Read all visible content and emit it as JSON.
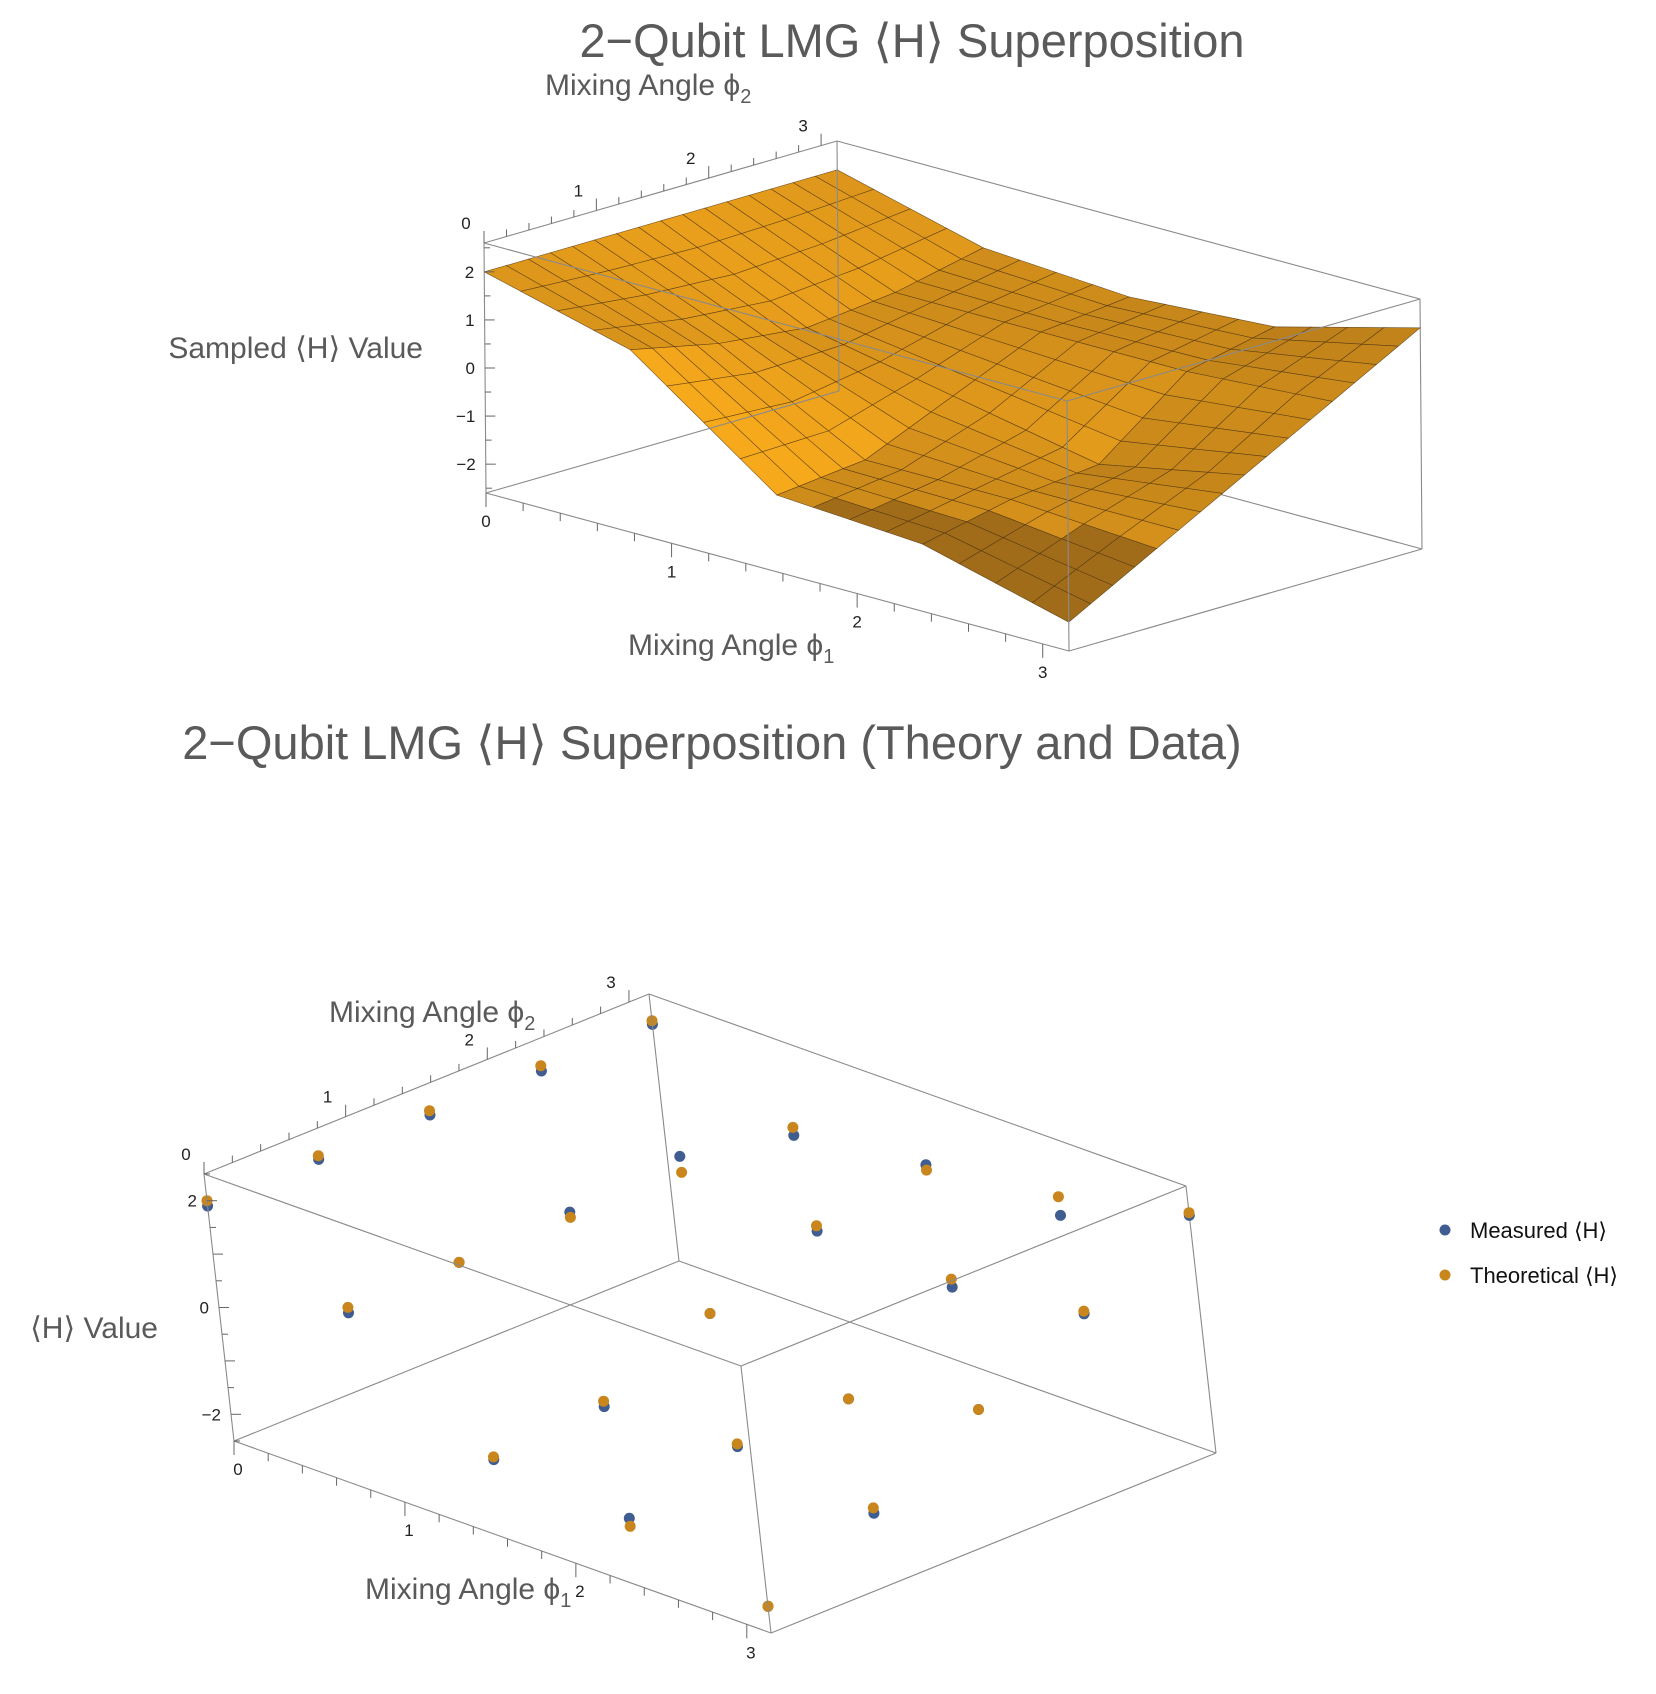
{
  "colors": {
    "surface_light": "#F7A91C",
    "surface_dark": "#5A3A16",
    "mesh": "#4a3010",
    "measured": "#3F5D91",
    "theoretical": "#C8861D",
    "text": "#5a5a5a"
  },
  "charts": [
    {
      "title": "2−Qubit LMG ⟨H⟩ Superposition",
      "xlabel": "Mixing Angle ϕ",
      "xlabel_sub": "1",
      "ylabel": "Mixing Angle ϕ",
      "ylabel_sub": "2",
      "zlabel": "Sampled ⟨H⟩ Value",
      "x_ticks": [
        "0",
        "1",
        "2",
        "3"
      ],
      "y_ticks": [
        "0",
        "1",
        "2",
        "3"
      ],
      "z_ticks": [
        "2",
        "1",
        "0",
        "−1",
        "−2"
      ]
    },
    {
      "title": "2−Qubit LMG ⟨H⟩ Superposition (Theory and Data)",
      "xlabel": "Mixing Angle ϕ",
      "xlabel_sub": "1",
      "ylabel": "Mixing Angle ϕ",
      "ylabel_sub": "2",
      "zlabel": "⟨H⟩ Value",
      "x_ticks": [
        "0",
        "1",
        "2",
        "3"
      ],
      "y_ticks": [
        "0",
        "1",
        "2",
        "3"
      ],
      "z_ticks": [
        "2",
        "0",
        "−2"
      ],
      "legend": [
        "Measured ⟨H⟩",
        "Theoretical ⟨H⟩"
      ]
    }
  ],
  "chart_data": [
    {
      "type": "surface3d",
      "title": "2−Qubit LMG ⟨H⟩ Superposition",
      "xlabel": "Mixing Angle ϕ1",
      "ylabel": "Mixing Angle ϕ2",
      "zlabel": "Sampled ⟨H⟩ Value",
      "xlim": [
        0,
        3.14159
      ],
      "ylim": [
        0,
        3.14159
      ],
      "zlim": [
        -2.6,
        2.6
      ],
      "x": [
        0,
        0.7854,
        1.5708,
        2.3562,
        3.1416
      ],
      "y": [
        0,
        0.7854,
        1.5708,
        2.3562,
        3.1416
      ],
      "z": [
        [
          2.0,
          2.0,
          2.0,
          2.0,
          2.0
        ],
        [
          1.2,
          0.8,
          0.6,
          0.8,
          1.2
        ],
        [
          -1.0,
          -0.8,
          0.0,
          0.8,
          1.0
        ],
        [
          -1.2,
          -0.8,
          -0.6,
          0.8,
          1.2
        ],
        [
          -2.0,
          -1.0,
          0.0,
          1.0,
          2.0
        ]
      ]
    },
    {
      "type": "scatter3d",
      "title": "2−Qubit LMG ⟨H⟩ Superposition (Theory and Data)",
      "xlabel": "Mixing Angle ϕ1",
      "ylabel": "Mixing Angle ϕ2",
      "zlabel": "⟨H⟩ Value",
      "xlim": [
        0,
        3.14159
      ],
      "ylim": [
        0,
        3.14159
      ],
      "zlim": [
        -2.5,
        2.5
      ],
      "x": [
        0,
        0.7854,
        1.5708,
        2.3562,
        3.1416
      ],
      "y": [
        0,
        0.7854,
        1.5708,
        2.3562,
        3.1416
      ],
      "legend": [
        "Measured ⟨H⟩",
        "Theoretical ⟨H⟩"
      ],
      "series": [
        {
          "name": "Measured ⟨H⟩",
          "z": [
            [
              1.9,
              1.93,
              1.92,
              1.9,
              1.93
            ],
            [
              0.8,
              0.9,
              1.0,
              1.2,
              0.75
            ],
            [
              -1.05,
              -0.9,
              0.0,
              0.7,
              1.1
            ],
            [
              -1.25,
              -0.75,
              -0.7,
              0.55,
              1.05
            ],
            [
              -2.0,
              -1.1,
              0.0,
              0.95,
              1.95
            ]
          ]
        },
        {
          "name": "Theoretical ⟨H⟩",
          "z": [
            [
              2.0,
              2.0,
              2.0,
              2.0,
              2.0
            ],
            [
              0.9,
              0.9,
              0.9,
              0.9,
              0.9
            ],
            [
              -1.0,
              -0.8,
              0.0,
              0.8,
              1.0
            ],
            [
              -1.4,
              -0.7,
              -0.7,
              0.7,
              1.4
            ],
            [
              -2.0,
              -1.0,
              0.0,
              1.0,
              2.0
            ]
          ]
        }
      ]
    }
  ]
}
